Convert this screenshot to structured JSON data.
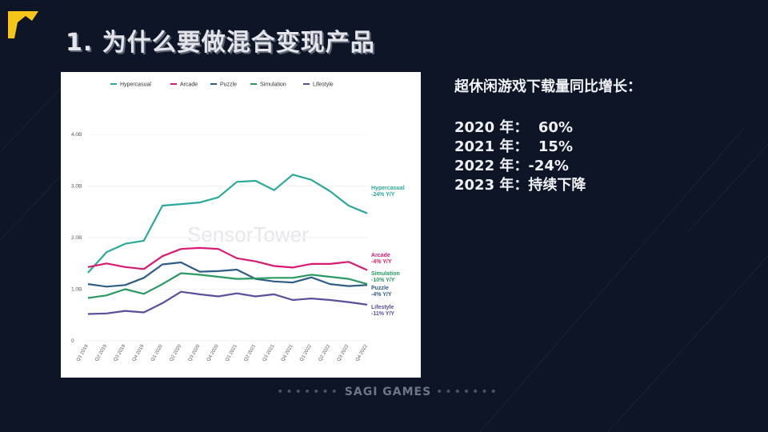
{
  "slide": {
    "title": "1. 为什么要做混合变现产品",
    "footer": "SAGI GAMES"
  },
  "stats": {
    "heading": "超休闲游戏下载量同比增长：",
    "lines": [
      "2020 年：  60%",
      "2021 年：  15%",
      "2022 年：-24%",
      "2023 年：持续下降"
    ]
  },
  "chart_data": {
    "type": "line",
    "title": "",
    "watermark": "SensorTower",
    "xlabel": "",
    "ylabel": "",
    "ylim": [
      0,
      4.0
    ],
    "yticks": [
      {
        "value": 0,
        "label": "0"
      },
      {
        "value": 1.0,
        "label": "1.0B"
      },
      {
        "value": 2.0,
        "label": "2.0B"
      },
      {
        "value": 3.0,
        "label": "3.0B"
      },
      {
        "value": 4.0,
        "label": "4.0B"
      }
    ],
    "categories": [
      "Q1 2019",
      "Q2 2019",
      "Q3 2019",
      "Q4 2019",
      "Q1 2020",
      "Q2 2020",
      "Q3 2020",
      "Q4 2020",
      "Q1 2021",
      "Q2 2021",
      "Q3 2021",
      "Q4 2021",
      "Q1 2022",
      "Q2 2022",
      "Q3 2022",
      "Q4 2022"
    ],
    "series": [
      {
        "name": "Hypercasual",
        "color": "#2aa99a",
        "end_label": "Hypercasual",
        "change": "-24% Y/Y",
        "values": [
          1.32,
          1.72,
          1.88,
          1.94,
          2.62,
          2.65,
          2.68,
          2.78,
          3.08,
          3.1,
          2.92,
          3.22,
          3.12,
          2.9,
          2.62,
          2.47
        ]
      },
      {
        "name": "Arcade",
        "color": "#d81b72",
        "end_label": "Arcade",
        "change": "-4% Y/Y",
        "values": [
          1.43,
          1.5,
          1.43,
          1.39,
          1.64,
          1.78,
          1.8,
          1.78,
          1.6,
          1.54,
          1.45,
          1.42,
          1.49,
          1.49,
          1.53,
          1.37
        ]
      },
      {
        "name": "Puzzle",
        "color": "#2f5d85",
        "end_label": "Puzzle",
        "change": "-4% Y/Y",
        "values": [
          1.1,
          1.05,
          1.08,
          1.22,
          1.48,
          1.52,
          1.34,
          1.35,
          1.38,
          1.2,
          1.15,
          1.13,
          1.23,
          1.1,
          1.06,
          1.08
        ]
      },
      {
        "name": "Simulation",
        "color": "#2a9a62",
        "end_label": "Simulation",
        "change": "-10% Y/Y",
        "values": [
          0.83,
          0.88,
          1.0,
          0.91,
          1.1,
          1.31,
          1.28,
          1.24,
          1.2,
          1.21,
          1.22,
          1.22,
          1.28,
          1.24,
          1.2,
          1.1
        ]
      },
      {
        "name": "Lifestyle",
        "color": "#5b4e9c",
        "end_label": "Lifestyle",
        "change": "-11% Y/Y",
        "values": [
          0.52,
          0.53,
          0.58,
          0.55,
          0.73,
          0.95,
          0.9,
          0.86,
          0.92,
          0.86,
          0.9,
          0.79,
          0.82,
          0.79,
          0.75,
          0.7
        ]
      }
    ],
    "legend_position": "top"
  }
}
